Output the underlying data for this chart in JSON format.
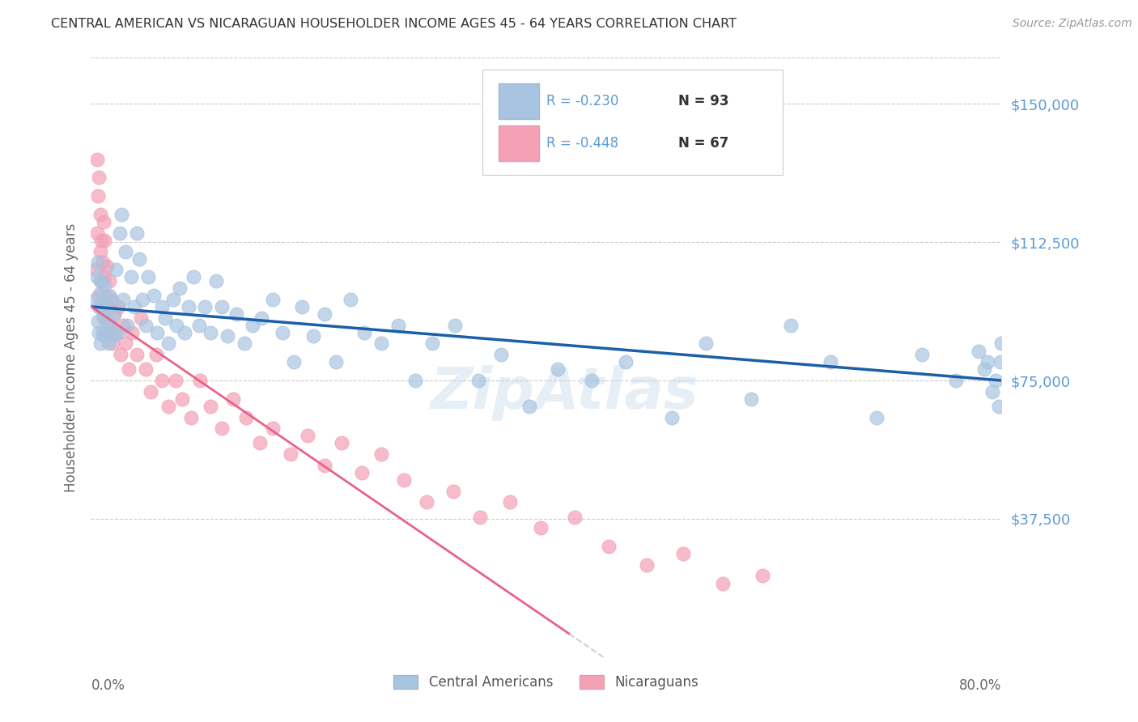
{
  "title": "CENTRAL AMERICAN VS NICARAGUAN HOUSEHOLDER INCOME AGES 45 - 64 YEARS CORRELATION CHART",
  "source": "Source: ZipAtlas.com",
  "ylabel": "Householder Income Ages 45 - 64 years",
  "ytick_labels": [
    "$37,500",
    "$75,000",
    "$112,500",
    "$150,000"
  ],
  "ytick_values": [
    37500,
    75000,
    112500,
    150000
  ],
  "ymin": 0,
  "ymax": 162500,
  "xmin": 0.0,
  "xmax": 0.8,
  "legend_label_ca": "Central Americans",
  "legend_label_ni": "Nicaraguans",
  "R_ca": -0.23,
  "N_ca": 93,
  "R_ni": -0.448,
  "N_ni": 67,
  "color_ca": "#a8c4e0",
  "color_ni": "#f4a0b5",
  "line_color_ca": "#1a5fa8",
  "line_color_ni": "#e8628a",
  "ca_x": [
    0.004,
    0.005,
    0.006,
    0.006,
    0.007,
    0.007,
    0.008,
    0.008,
    0.009,
    0.01,
    0.01,
    0.011,
    0.012,
    0.012,
    0.013,
    0.014,
    0.015,
    0.016,
    0.017,
    0.018,
    0.019,
    0.02,
    0.022,
    0.024,
    0.025,
    0.027,
    0.028,
    0.03,
    0.032,
    0.035,
    0.038,
    0.04,
    0.042,
    0.045,
    0.048,
    0.05,
    0.055,
    0.058,
    0.062,
    0.065,
    0.068,
    0.072,
    0.075,
    0.078,
    0.082,
    0.086,
    0.09,
    0.095,
    0.1,
    0.105,
    0.11,
    0.115,
    0.12,
    0.128,
    0.135,
    0.142,
    0.15,
    0.16,
    0.168,
    0.178,
    0.185,
    0.195,
    0.205,
    0.215,
    0.228,
    0.24,
    0.255,
    0.27,
    0.285,
    0.3,
    0.32,
    0.34,
    0.36,
    0.385,
    0.41,
    0.44,
    0.47,
    0.51,
    0.54,
    0.58,
    0.615,
    0.65,
    0.69,
    0.73,
    0.76,
    0.78,
    0.785,
    0.788,
    0.792,
    0.795,
    0.798,
    0.799,
    0.8
  ],
  "ca_y": [
    97000,
    103000,
    91000,
    107000,
    95000,
    88000,
    102000,
    85000,
    99000,
    96000,
    88000,
    93000,
    101000,
    87000,
    94000,
    91000,
    85000,
    98000,
    90000,
    96000,
    87000,
    93000,
    105000,
    88000,
    115000,
    120000,
    97000,
    110000,
    90000,
    103000,
    95000,
    115000,
    108000,
    97000,
    90000,
    103000,
    98000,
    88000,
    95000,
    92000,
    85000,
    97000,
    90000,
    100000,
    88000,
    95000,
    103000,
    90000,
    95000,
    88000,
    102000,
    95000,
    87000,
    93000,
    85000,
    90000,
    92000,
    97000,
    88000,
    80000,
    95000,
    87000,
    93000,
    80000,
    97000,
    88000,
    85000,
    90000,
    75000,
    85000,
    90000,
    75000,
    82000,
    68000,
    78000,
    75000,
    80000,
    65000,
    85000,
    70000,
    90000,
    80000,
    65000,
    82000,
    75000,
    83000,
    78000,
    80000,
    72000,
    75000,
    68000,
    80000,
    85000
  ],
  "ni_x": [
    0.004,
    0.005,
    0.005,
    0.006,
    0.007,
    0.007,
    0.008,
    0.008,
    0.009,
    0.009,
    0.01,
    0.01,
    0.011,
    0.011,
    0.012,
    0.012,
    0.013,
    0.014,
    0.014,
    0.015,
    0.016,
    0.017,
    0.018,
    0.019,
    0.02,
    0.022,
    0.024,
    0.026,
    0.028,
    0.03,
    0.033,
    0.036,
    0.04,
    0.044,
    0.048,
    0.052,
    0.057,
    0.062,
    0.068,
    0.074,
    0.08,
    0.088,
    0.096,
    0.105,
    0.115,
    0.125,
    0.136,
    0.148,
    0.16,
    0.175,
    0.19,
    0.205,
    0.22,
    0.238,
    0.255,
    0.275,
    0.295,
    0.318,
    0.342,
    0.368,
    0.395,
    0.425,
    0.455,
    0.488,
    0.52,
    0.555,
    0.59
  ],
  "ni_y": [
    105000,
    135000,
    115000,
    125000,
    130000,
    98000,
    110000,
    120000,
    102000,
    113000,
    95000,
    107000,
    118000,
    92000,
    103000,
    113000,
    98000,
    106000,
    88000,
    95000,
    102000,
    90000,
    97000,
    85000,
    93000,
    88000,
    95000,
    82000,
    90000,
    85000,
    78000,
    88000,
    82000,
    92000,
    78000,
    72000,
    82000,
    75000,
    68000,
    75000,
    70000,
    65000,
    75000,
    68000,
    62000,
    70000,
    65000,
    58000,
    62000,
    55000,
    60000,
    52000,
    58000,
    50000,
    55000,
    48000,
    42000,
    45000,
    38000,
    42000,
    35000,
    38000,
    30000,
    25000,
    28000,
    20000,
    22000
  ]
}
